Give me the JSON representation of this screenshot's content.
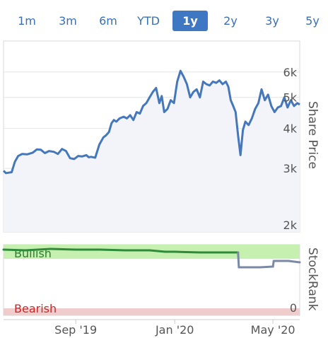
{
  "range_buttons": [
    {
      "label": "1m",
      "active": false
    },
    {
      "label": "3m",
      "active": false
    },
    {
      "label": "6m",
      "active": false
    },
    {
      "label": "YTD",
      "active": false
    },
    {
      "label": "1y",
      "active": true
    },
    {
      "label": "2y",
      "active": false
    },
    {
      "label": "3y",
      "active": false
    },
    {
      "label": "5y",
      "active": false
    }
  ],
  "colors": {
    "accent": "#3f78c2",
    "price_line": "#4477bb",
    "price_fill": "#f2f4fa",
    "bullish_zone": "#c6f0b0",
    "bearish_zone": "#f1cccc",
    "rank_line_bullish": "#2e8b3a",
    "rank_line_neutral": "#7a8aa6",
    "bullish_text": "#2e7d32",
    "bearish_text": "#c62828"
  },
  "chart_data": [
    {
      "type": "line",
      "ylabel": "Share Price",
      "yscale": "log",
      "ylim": [
        1900,
        7500
      ],
      "yticks": [
        {
          "value": 2000,
          "label": "2k"
        },
        {
          "value": 3000,
          "label": "3k"
        },
        {
          "value": 4000,
          "label": "4k"
        },
        {
          "value": 5000,
          "label": "5k"
        },
        {
          "value": 6000,
          "label": "6k"
        }
      ],
      "xticks": [
        {
          "date": "2019-09-01",
          "label": "Sep '19"
        },
        {
          "date": "2020-01-01",
          "label": "Jan '20"
        },
        {
          "date": "2020-05-01",
          "label": "May '20"
        }
      ],
      "xlim": [
        "2019-06-04",
        "2020-06-03"
      ],
      "grid": true,
      "series": [
        {
          "x": [
            "2019-06-04",
            "2019-06-07",
            "2019-06-14",
            "2019-06-18",
            "2019-06-22",
            "2019-06-27",
            "2019-07-03",
            "2019-07-10",
            "2019-07-15",
            "2019-07-20",
            "2019-07-25",
            "2019-07-30",
            "2019-08-05",
            "2019-08-10",
            "2019-08-15",
            "2019-08-20",
            "2019-08-25",
            "2019-08-30",
            "2019-09-04",
            "2019-09-09",
            "2019-09-14",
            "2019-09-17",
            "2019-09-20",
            "2019-09-25",
            "2019-09-30",
            "2019-10-05",
            "2019-10-08",
            "2019-10-12",
            "2019-10-15",
            "2019-10-18",
            "2019-10-21",
            "2019-10-25",
            "2019-10-30",
            "2019-11-03",
            "2019-11-07",
            "2019-11-11",
            "2019-11-15",
            "2019-11-19",
            "2019-11-23",
            "2019-11-27",
            "2019-12-01",
            "2019-12-05",
            "2019-12-09",
            "2019-12-13",
            "2019-12-16",
            "2019-12-19",
            "2019-12-23",
            "2019-12-27",
            "2019-12-31",
            "2020-01-04",
            "2020-01-08",
            "2020-01-12",
            "2020-01-16",
            "2020-01-20",
            "2020-01-24",
            "2020-01-28",
            "2020-02-01",
            "2020-02-05",
            "2020-02-09",
            "2020-02-13",
            "2020-02-17",
            "2020-02-21",
            "2020-02-25",
            "2020-02-29",
            "2020-03-04",
            "2020-03-07",
            "2020-03-10",
            "2020-03-13",
            "2020-03-16",
            "2020-03-19",
            "2020-03-22",
            "2020-03-25",
            "2020-03-28",
            "2020-04-01",
            "2020-04-05",
            "2020-04-09",
            "2020-04-13",
            "2020-04-17",
            "2020-04-21",
            "2020-04-25",
            "2020-04-29",
            "2020-05-03",
            "2020-05-07",
            "2020-05-11",
            "2020-05-15",
            "2020-05-19",
            "2020-05-23",
            "2020-05-27",
            "2020-05-31",
            "2020-06-03"
          ],
          "values": [
            2950,
            2900,
            2920,
            3150,
            3280,
            3330,
            3320,
            3360,
            3440,
            3430,
            3350,
            3400,
            3380,
            3330,
            3450,
            3400,
            3230,
            3210,
            3280,
            3270,
            3300,
            3250,
            3260,
            3240,
            3560,
            3750,
            3800,
            3900,
            4150,
            4250,
            4200,
            4300,
            4350,
            4300,
            4400,
            4250,
            4500,
            4450,
            4700,
            4800,
            5000,
            5200,
            5350,
            4800,
            5050,
            4500,
            4600,
            4900,
            4800,
            5600,
            6050,
            5800,
            5500,
            5000,
            5200,
            5300,
            5000,
            5600,
            5500,
            5450,
            5600,
            5550,
            5650,
            5500,
            5600,
            5400,
            4900,
            4700,
            4500,
            3800,
            3300,
            3950,
            4200,
            4100,
            4300,
            4600,
            4800,
            5300,
            4900,
            5100,
            4700,
            4500,
            4650,
            4700,
            5000,
            4650,
            4900,
            4700,
            4800,
            4750
          ]
        }
      ]
    },
    {
      "type": "line",
      "ylabel": "StockRank",
      "ylim": [
        0,
        100
      ],
      "zones": [
        {
          "label": "Bullish",
          "from": 80,
          "to": 100
        },
        {
          "label": "Bearish",
          "from": 0,
          "to": 10
        }
      ],
      "yticks": [
        {
          "value": 0,
          "label": "0"
        }
      ],
      "series": [
        {
          "x": [
            "2019-06-04",
            "2019-07-01",
            "2019-08-01",
            "2019-09-01",
            "2019-10-01",
            "2019-11-01",
            "2019-12-01",
            "2019-12-20",
            "2020-01-01",
            "2020-02-01",
            "2020-03-01",
            "2020-03-19",
            "2020-03-20",
            "2020-03-25",
            "2020-04-15",
            "2020-05-01",
            "2020-05-02",
            "2020-05-20",
            "2020-06-03"
          ],
          "values": [
            93,
            92,
            94,
            93,
            93,
            92,
            92,
            90,
            90,
            89,
            89,
            89,
            68,
            68,
            68,
            69,
            77,
            77,
            75
          ]
        }
      ]
    }
  ]
}
